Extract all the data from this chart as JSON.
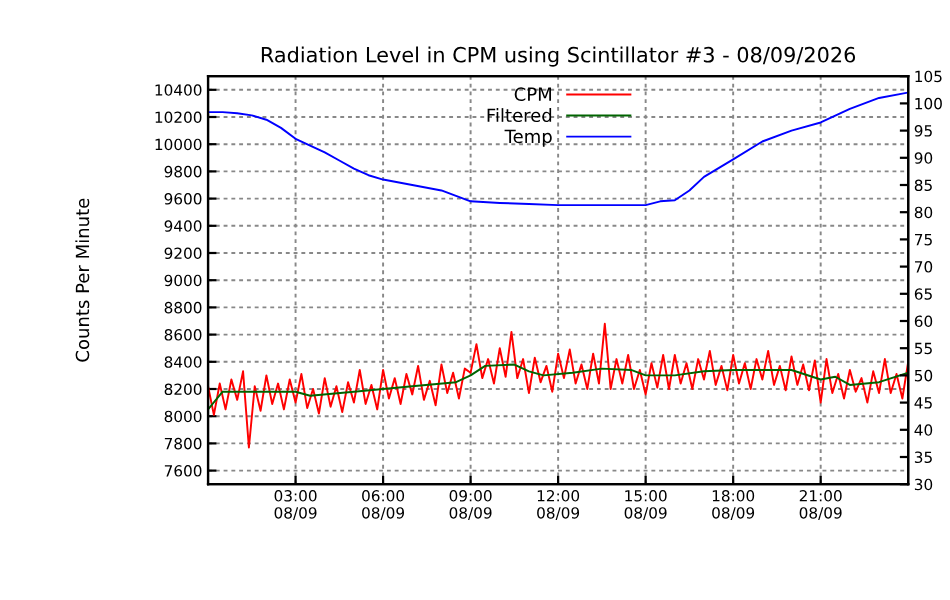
{
  "chart_data": {
    "type": "line",
    "title": "Radiation Level in CPM using Scintillator #3 - 08/09/2026",
    "ylabel": "Counts Per Minute",
    "xlim": [
      "2026-08-09T00:00",
      "2026-08-10T00:00"
    ],
    "xticks": [
      {
        "value": "2026-08-09T03:00",
        "label": "03:00\n08/09"
      },
      {
        "value": "2026-08-09T06:00",
        "label": "06:00\n08/09"
      },
      {
        "value": "2026-08-09T09:00",
        "label": "09:00\n08/09"
      },
      {
        "value": "2026-08-09T12:00",
        "label": "12:00\n08/09"
      },
      {
        "value": "2026-08-09T15:00",
        "label": "15:00\n08/09"
      },
      {
        "value": "2026-08-09T18:00",
        "label": "18:00\n08/09"
      },
      {
        "value": "2026-08-09T21:00",
        "label": "21:00\n08/09"
      }
    ],
    "ylim": [
      7500,
      10500
    ],
    "yticks": [
      7600,
      7800,
      8000,
      8200,
      8400,
      8600,
      8800,
      9000,
      9200,
      9400,
      9600,
      9800,
      10000,
      10200,
      10400
    ],
    "y2lim": [
      30,
      105
    ],
    "y2ticks": [
      30,
      35,
      40,
      45,
      50,
      55,
      60,
      65,
      70,
      75,
      80,
      85,
      90,
      95,
      100,
      105
    ],
    "grid": true,
    "legend": "top",
    "marker": "none",
    "line_style": "solid",
    "series": [
      {
        "name": "CPM",
        "color": "#ff0000",
        "x": [
          "2026-08-09T00:00",
          "2026-08-09T00:12",
          "2026-08-09T00:24",
          "2026-08-09T00:36",
          "2026-08-09T00:48",
          "2026-08-09T01:00",
          "2026-08-09T01:12",
          "2026-08-09T01:24",
          "2026-08-09T01:36",
          "2026-08-09T01:48",
          "2026-08-09T02:00",
          "2026-08-09T02:12",
          "2026-08-09T02:24",
          "2026-08-09T02:36",
          "2026-08-09T02:48",
          "2026-08-09T03:00",
          "2026-08-09T03:12",
          "2026-08-09T03:24",
          "2026-08-09T03:36",
          "2026-08-09T03:48",
          "2026-08-09T04:00",
          "2026-08-09T04:12",
          "2026-08-09T04:24",
          "2026-08-09T04:36",
          "2026-08-09T04:48",
          "2026-08-09T05:00",
          "2026-08-09T05:12",
          "2026-08-09T05:24",
          "2026-08-09T05:36",
          "2026-08-09T05:48",
          "2026-08-09T06:00",
          "2026-08-09T06:12",
          "2026-08-09T06:24",
          "2026-08-09T06:36",
          "2026-08-09T06:48",
          "2026-08-09T07:00",
          "2026-08-09T07:12",
          "2026-08-09T07:24",
          "2026-08-09T07:36",
          "2026-08-09T07:48",
          "2026-08-09T08:00",
          "2026-08-09T08:12",
          "2026-08-09T08:24",
          "2026-08-09T08:36",
          "2026-08-09T08:48",
          "2026-08-09T09:00",
          "2026-08-09T09:12",
          "2026-08-09T09:24",
          "2026-08-09T09:36",
          "2026-08-09T09:48",
          "2026-08-09T10:00",
          "2026-08-09T10:12",
          "2026-08-09T10:24",
          "2026-08-09T10:36",
          "2026-08-09T10:48",
          "2026-08-09T11:00",
          "2026-08-09T11:12",
          "2026-08-09T11:24",
          "2026-08-09T11:36",
          "2026-08-09T11:48",
          "2026-08-09T12:00",
          "2026-08-09T12:12",
          "2026-08-09T12:24",
          "2026-08-09T12:36",
          "2026-08-09T12:48",
          "2026-08-09T13:00",
          "2026-08-09T13:12",
          "2026-08-09T13:24",
          "2026-08-09T13:36",
          "2026-08-09T13:48",
          "2026-08-09T14:00",
          "2026-08-09T14:12",
          "2026-08-09T14:24",
          "2026-08-09T14:36",
          "2026-08-09T14:48",
          "2026-08-09T15:00",
          "2026-08-09T15:12",
          "2026-08-09T15:24",
          "2026-08-09T15:36",
          "2026-08-09T15:48",
          "2026-08-09T16:00",
          "2026-08-09T16:12",
          "2026-08-09T16:24",
          "2026-08-09T16:36",
          "2026-08-09T16:48",
          "2026-08-09T17:00",
          "2026-08-09T17:12",
          "2026-08-09T17:24",
          "2026-08-09T17:36",
          "2026-08-09T17:48",
          "2026-08-09T18:00",
          "2026-08-09T18:12",
          "2026-08-09T18:24",
          "2026-08-09T18:36",
          "2026-08-09T18:48",
          "2026-08-09T19:00",
          "2026-08-09T19:12",
          "2026-08-09T19:24",
          "2026-08-09T19:36",
          "2026-08-09T19:48",
          "2026-08-09T20:00",
          "2026-08-09T20:12",
          "2026-08-09T20:24",
          "2026-08-09T20:36",
          "2026-08-09T20:48",
          "2026-08-09T21:00",
          "2026-08-09T21:12",
          "2026-08-09T21:24",
          "2026-08-09T21:36",
          "2026-08-09T21:48",
          "2026-08-09T22:00",
          "2026-08-09T22:12",
          "2026-08-09T22:24",
          "2026-08-09T22:36",
          "2026-08-09T22:48",
          "2026-08-09T23:00",
          "2026-08-09T23:12",
          "2026-08-09T23:24",
          "2026-08-09T23:36",
          "2026-08-09T23:48",
          "2026-08-10T00:00"
        ],
        "values": [
          8220,
          8010,
          8240,
          8050,
          8270,
          8120,
          8330,
          7770,
          8220,
          8040,
          8300,
          8090,
          8240,
          8050,
          8270,
          8100,
          8310,
          8060,
          8200,
          8020,
          8280,
          8070,
          8220,
          8030,
          8250,
          8100,
          8340,
          8090,
          8230,
          8050,
          8340,
          8130,
          8280,
          8090,
          8310,
          8160,
          8370,
          8120,
          8260,
          8080,
          8380,
          8170,
          8320,
          8130,
          8350,
          8320,
          8530,
          8280,
          8420,
          8240,
          8500,
          8290,
          8620,
          8280,
          8420,
          8170,
          8430,
          8250,
          8370,
          8180,
          8460,
          8280,
          8490,
          8240,
          8380,
          8200,
          8460,
          8240,
          8680,
          8200,
          8420,
          8240,
          8450,
          8200,
          8340,
          8160,
          8390,
          8210,
          8450,
          8200,
          8450,
          8240,
          8390,
          8200,
          8420,
          8270,
          8480,
          8230,
          8370,
          8190,
          8450,
          8240,
          8390,
          8200,
          8420,
          8270,
          8480,
          8230,
          8370,
          8190,
          8440,
          8230,
          8380,
          8190,
          8410,
          8100,
          8420,
          8170,
          8310,
          8130,
          8340,
          8180,
          8280,
          8100,
          8330,
          8170,
          8420,
          8170,
          8310,
          8130,
          8400
        ]
      },
      {
        "name": "Filtered",
        "color": "#006400",
        "x": [
          "2026-08-09T00:00",
          "2026-08-09T00:30",
          "2026-08-09T03:00",
          "2026-08-09T03:30",
          "2026-08-09T05:00",
          "2026-08-09T06:00",
          "2026-08-09T07:00",
          "2026-08-09T08:30",
          "2026-08-09T09:00",
          "2026-08-09T09:30",
          "2026-08-09T10:30",
          "2026-08-09T11:00",
          "2026-08-09T11:30",
          "2026-08-09T12:30",
          "2026-08-09T13:30",
          "2026-08-09T14:30",
          "2026-08-09T15:00",
          "2026-08-09T16:00",
          "2026-08-09T17:00",
          "2026-08-09T18:00",
          "2026-08-09T19:00",
          "2026-08-09T20:00",
          "2026-08-09T21:00",
          "2026-08-09T21:30",
          "2026-08-09T22:00",
          "2026-08-09T23:00",
          "2026-08-10T00:00"
        ],
        "values": [
          8050,
          8180,
          8180,
          8150,
          8180,
          8200,
          8220,
          8250,
          8300,
          8370,
          8380,
          8330,
          8300,
          8320,
          8350,
          8340,
          8300,
          8300,
          8330,
          8340,
          8340,
          8340,
          8270,
          8290,
          8230,
          8250,
          8320
        ]
      },
      {
        "name": "Temp",
        "color": "#0000ff",
        "axis": "y2",
        "x": [
          "2026-08-09T00:00",
          "2026-08-09T00:30",
          "2026-08-09T01:00",
          "2026-08-09T01:30",
          "2026-08-09T02:00",
          "2026-08-09T02:30",
          "2026-08-09T03:00",
          "2026-08-09T04:00",
          "2026-08-09T04:30",
          "2026-08-09T05:00",
          "2026-08-09T05:30",
          "2026-08-09T06:00",
          "2026-08-09T07:00",
          "2026-08-09T08:00",
          "2026-08-09T08:30",
          "2026-08-09T09:00",
          "2026-08-09T10:00",
          "2026-08-09T11:00",
          "2026-08-09T12:00",
          "2026-08-09T13:00",
          "2026-08-09T14:00",
          "2026-08-09T15:00",
          "2026-08-09T15:30",
          "2026-08-09T16:00",
          "2026-08-09T16:30",
          "2026-08-09T17:00",
          "2026-08-09T18:00",
          "2026-08-09T19:00",
          "2026-08-09T20:00",
          "2026-08-09T21:00",
          "2026-08-09T22:00",
          "2026-08-09T23:00",
          "2026-08-10T00:00"
        ],
        "values": [
          98.4,
          98.4,
          98.2,
          97.8,
          97,
          95.5,
          93.5,
          91,
          89.5,
          88,
          86.8,
          86,
          85,
          84,
          83,
          82,
          81.7,
          81.5,
          81.3,
          81.3,
          81.3,
          81.3,
          82,
          82.2,
          84,
          86.5,
          89.7,
          93,
          95,
          96.5,
          99,
          101,
          102
        ]
      }
    ]
  }
}
